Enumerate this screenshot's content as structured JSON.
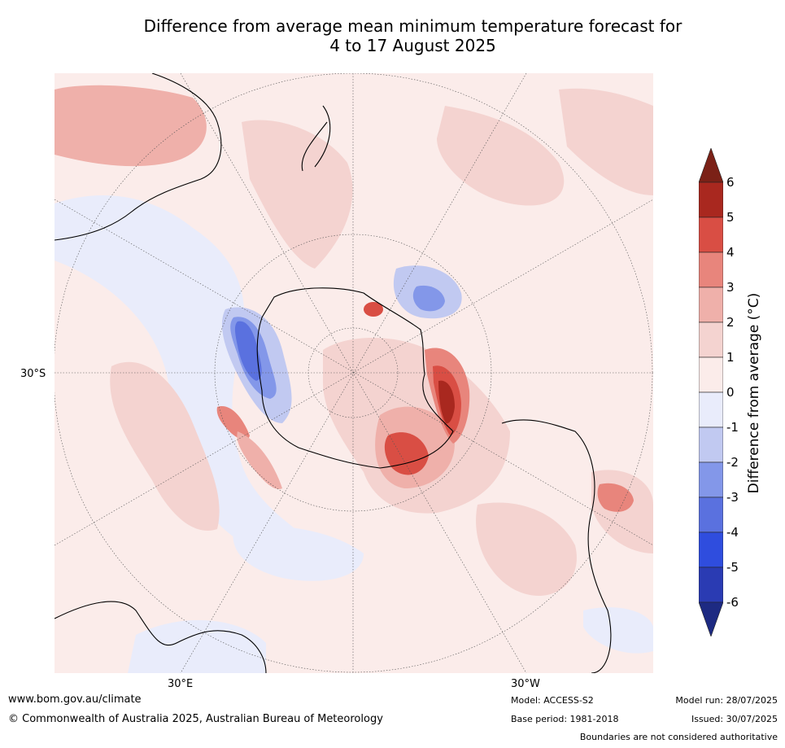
{
  "title_line1": "Difference from average mean minimum temperature forecast for",
  "title_line2": "4 to 17 August 2025",
  "map": {
    "lat_label": "30°S",
    "lon_labels": [
      "30°E",
      "30°W"
    ]
  },
  "colorbar": {
    "label": "Difference from average (°C)",
    "ticks": [
      "6",
      "5",
      "4",
      "3",
      "2",
      "1",
      "0",
      "-1",
      "-2",
      "-3",
      "-4",
      "-5",
      "-6"
    ],
    "colors": [
      "#7b2117",
      "#a9281f",
      "#d94e44",
      "#e8857c",
      "#efb0aa",
      "#f4d3d0",
      "#fbecea",
      "#e9ecfb",
      "#c1c9f1",
      "#8397e9",
      "#5a71df",
      "#2f4dde",
      "#2a3bb3",
      "#1d2a82"
    ]
  },
  "footer": {
    "website": "www.bom.gov.au/climate",
    "copyright": "© Commonwealth of Australia 2025, Australian Bureau of Meteorology",
    "model": "Model: ACCESS-S2",
    "base_period": "Base period: 1981-2018",
    "model_run": "Model run: 28/07/2025",
    "issued": "Issued: 30/07/2025",
    "disclaimer": "Boundaries are not considered authoritative"
  }
}
